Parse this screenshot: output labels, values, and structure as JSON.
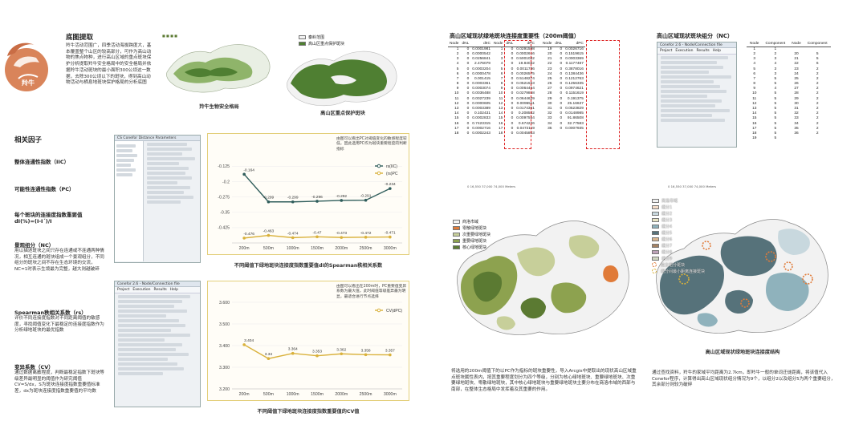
{
  "left": {
    "logo_label": "羚牛",
    "title": "底图提取",
    "desc": "羚牛活动范围广，四季活动海拔跨度大，基本覆盖整个山区的较高部分，可作为高山动物的焦点物种，进行高山区域的重点斑块保护分析提取羚牛安全格局中的安全格局并依据羚牛活动斑块的最小面积300公顷这一数据，去除300公顷以下的斑块，得到高山动物活动与栖息地斑块保护格局的分析底图",
    "map1_caption": "羚牛生物安全格局",
    "map2_caption": "高山区重点保护斑块",
    "map2_legend": [
      "秦岭范围",
      "高山区重点保护斑块"
    ],
    "factors_title": "相关因子",
    "iic_label": "整体连通性指数（IIC）",
    "pc_label": "可能性连通性指数（PC）",
    "dI_label": "每个斑块的连接度指数重要值",
    "dI_formula": "dI(%)=(I-I´)/I",
    "nc_label": "景观组分（NC）",
    "nc_desc": "用以描述斑块之间只存在连通或不连通两种情况，相互连通的斑块组成一个景观组分，不同组分的斑块之间不存在生态环境的交流，NC=1时表示生境最为完整，越大则越破碎",
    "rs_label": "Spearman秩相关系数（rs）",
    "rs_desc": "评价不同连接度指数对不同距离阈值的敏感度，寻找阈值变化下最稳定的连接度指数作为分析绿地斑块的最优指数",
    "cv_label": "变异系数（CV）",
    "cv_desc": "通过数据离散程度，判断最稳定指数下斑块等级差异最明显的阈值作为研究阈值CV=S/dx，S为斑块连接度指数重要值标准差，dx为斑块连接度指数重要值的平均数"
  },
  "windows": {
    "conefor1_title": "CS Conefor Distance Parameters",
    "conefor2_title": "Conefor 2.6 - Node/Connection file",
    "menu": [
      "Project",
      "Execution",
      "Results",
      "Help"
    ]
  },
  "chart1": {
    "note": "由图可以看出PC对阈值变化的敏感程度较低，因此选用PC作为斑块重要程度的判断指标",
    "caption": "不同阈值下绿地斑块连接度指数重要值dI的Spearman秩相关系数"
  },
  "chart2": {
    "note": "由图可以看出在200m时，PC重要值变异系数为最大值，此时阈值等级差异最为明显，最适合进行节点选择",
    "caption": "不同阈值下绿地斑块连接度指数重要值的CV值"
  },
  "chart_data": [
    {
      "type": "line",
      "categories": [
        "200m",
        "500m",
        "1000m",
        "1500m",
        "2000m",
        "2500m",
        "3000m"
      ],
      "ylim": [
        -0.5,
        -0.1
      ],
      "yticks": [
        "-0.125",
        "-0.2",
        "-0.275",
        "-0.35",
        "-0.425"
      ],
      "series": [
        {
          "name": "rs(IIC)",
          "values": [
            -0.164,
            -0.299,
            -0.299,
            -0.296,
            -0.292,
            -0.291,
            -0.234
          ],
          "labels": [
            "-0.164",
            "-0.299",
            "-0.299",
            "-0.296",
            "-0.292",
            "-0.291",
            "-0.234"
          ],
          "color": "#2f5d5b"
        },
        {
          "name": "(rs)PC",
          "values": [
            -0.476,
            -0.463,
            -0.474,
            -0.47,
            -0.473,
            -0.472,
            -0.471
          ],
          "labels": [
            "-0.476",
            "-0.463",
            "-0.474",
            "-0.47",
            "-0.473",
            "-0.472",
            "-0.471"
          ],
          "color": "#d9b13b"
        }
      ]
    },
    {
      "type": "line",
      "categories": [
        "200m",
        "500m",
        "1000m",
        "1500m",
        "2000m",
        "2500m",
        "3000m"
      ],
      "ylim": [
        3.2,
        3.6
      ],
      "yticks": [
        "3.600",
        "3.500",
        "3.400",
        "3.300",
        "3.200"
      ],
      "series": [
        {
          "name": "CV(dPC)",
          "values": [
            3.404,
            3.34,
            3.364,
            3.353,
            3.362,
            3.358,
            3.357
          ],
          "labels": [
            "3.404",
            "3.34",
            "3.364",
            "3.353",
            "3.362",
            "3.358",
            "3.357"
          ],
          "color": "#d9b13b"
        }
      ]
    }
  ],
  "table_importance": {
    "title": "高山区域现状绿地斑块连接度重要性（200m阈值）",
    "headers": [
      "Node",
      "dNL",
      "dIIC",
      "Node",
      "dNL",
      "dPC"
    ],
    "rows": [
      [
        "1",
        "0",
        "0.0001981",
        "1",
        "0",
        "0.0291598"
      ],
      [
        "2",
        "0",
        "0.0000542",
        "2",
        "0",
        "0.0002616"
      ],
      [
        "3",
        "0",
        "0.0256841",
        "3",
        "0",
        "0.5001082"
      ],
      [
        "4",
        "0",
        "2.476079",
        "4",
        "0",
        "19.84042"
      ],
      [
        "5",
        "0",
        "0.0003204",
        "5",
        "0",
        "0.0011736"
      ],
      [
        "6",
        "0",
        "0.0000478",
        "6",
        "0",
        "0.0026575"
      ],
      [
        "7",
        "0",
        "0.001415",
        "7",
        "0",
        "0.5148274"
      ],
      [
        "8",
        "0",
        "0.0003361",
        "8",
        "0",
        "0.0521553"
      ],
      [
        "9",
        "0",
        "0.0003074",
        "9",
        "0",
        "0.0064454"
      ],
      [
        "10",
        "0",
        "0.0036488",
        "10",
        "0",
        "0.0279858"
      ],
      [
        "11",
        "0",
        "0.0027239",
        "11",
        "0",
        "0.0644629"
      ],
      [
        "12",
        "0",
        "0.0000605",
        "12",
        "0",
        "0.0095511"
      ],
      [
        "13",
        "0",
        "0.0003389",
        "13",
        "0",
        "0.0174361"
      ],
      [
        "14",
        "0",
        "0.102431",
        "14",
        "0",
        "0.208582"
      ],
      [
        "15",
        "0",
        "0.0002833",
        "15",
        "0",
        "0.0097554"
      ],
      [
        "16",
        "0",
        "0.7423315",
        "16",
        "0",
        "0.674226"
      ],
      [
        "17",
        "0",
        "0.0002716",
        "17",
        "0",
        "0.0472119"
      ],
      [
        "18",
        "0",
        "0.0002243",
        "18",
        "0",
        "0.0045803"
      ]
    ],
    "extra_headers": [
      "Node",
      "dNL",
      "dPC"
    ],
    "extra_rows": [
      [
        "19",
        "0",
        "0.0002917"
      ],
      [
        "20",
        "0",
        "0.0767324"
      ],
      [
        "21",
        "0",
        "0.0001547"
      ],
      [
        "22",
        "0",
        "0.0006612"
      ],
      [
        "23",
        "0",
        "0.0011209"
      ],
      [
        "24",
        "0",
        "0.0023493"
      ],
      [
        "25",
        "0",
        "0.0003878"
      ],
      [
        "26",
        "0",
        "0.0006367"
      ],
      [
        "27",
        "0",
        "0.0004194"
      ],
      [
        "28",
        "0",
        "0.0003048"
      ],
      [
        "29",
        "0",
        "0.0020774"
      ],
      [
        "30",
        "0",
        "5.062697"
      ],
      [
        "31",
        "0",
        "0.0000984"
      ],
      [
        "32",
        "0",
        "0.0001198"
      ],
      [
        "33",
        "0",
        "90.50196"
      ],
      [
        "34",
        "0",
        "11.21739"
      ],
      [
        "35",
        "0",
        "0.0001287"
      ]
    ],
    "extra_values": [
      [
        "0.0026716",
        "0.1519615",
        "0.0003369",
        "0.1177487",
        "0.3878016",
        "0.1384436",
        "0.1212763",
        "0.1256335",
        "0.0974621",
        "0.1151619",
        "0.191375",
        "25.16637",
        "0.0523829",
        "0.0148985",
        "91.86508",
        "32.77583",
        "0.0007935"
      ]
    ],
    "extra_units": [
      "0.0026716",
      "0.1519615",
      "0.0003369",
      "0.1177487",
      "0.3878016",
      "0.1384436",
      "0.1212763",
      "0.1256335",
      "0.0974621",
      "0.1151619",
      "0.191375",
      "25.16637",
      "0.0523829",
      "0.0148985",
      "91.86508",
      "32.77583",
      "0.0007935"
    ]
  },
  "component_table": {
    "title": "高山区域现状斑块组分（NC）",
    "headers": [
      "Node",
      "Component",
      "Node",
      "Component"
    ],
    "rows": [
      [
        "1",
        "1",
        "",
        ""
      ],
      [
        "2",
        "2",
        "20",
        "5"
      ],
      [
        "3",
        "3",
        "21",
        "5"
      ],
      [
        "4",
        "4",
        "22",
        "6"
      ],
      [
        "5",
        "3",
        "23",
        "2"
      ],
      [
        "6",
        "3",
        "24",
        "2"
      ],
      [
        "7",
        "5",
        "25",
        "2"
      ],
      [
        "8",
        "5",
        "26",
        "2"
      ],
      [
        "9",
        "4",
        "27",
        "2"
      ],
      [
        "10",
        "5",
        "28",
        "2"
      ],
      [
        "11",
        "5",
        "29",
        "2"
      ],
      [
        "12",
        "5",
        "30",
        "2"
      ],
      [
        "13",
        "5",
        "31",
        "2"
      ],
      [
        "14",
        "5",
        "32",
        "2"
      ],
      [
        "15",
        "5",
        "33",
        "2"
      ],
      [
        "16",
        "5",
        "34",
        "2"
      ],
      [
        "17",
        "5",
        "35",
        "2"
      ],
      [
        "18",
        "5",
        "36",
        "2"
      ],
      [
        "19",
        "5",
        "",
        ""
      ]
    ]
  },
  "map3": {
    "legend": [
      "商洛市域",
      "零散绿地斑块",
      "次重要绿地斑块",
      "重要绿地斑块",
      "核心绿地斑块"
    ],
    "legend_colors": [
      "#f2f2f2",
      "#e07b39",
      "#c7cf9a",
      "#8da24f",
      "#5b7a32"
    ],
    "scale": "0  16,550  37,000  74,000 Meters",
    "desc": "将选用的200m阈值下的以PC作为指标的斑块重要性，导入Arcgis中提取出的现状高山区域重点斑块属性表内，按其重要程度划分为四个等级，分别为核心绿地斑块、重要绿地斑块、次重要绿地斑块、零散绿地斑块，其中核心绿地斑块与重要绿地斑块主要分布在商洛市域的西部与南部，在整体生态格局中发挥着及其重要的作用。"
  },
  "map4": {
    "legend": [
      "商洛市域",
      "组分1",
      "组分2",
      "组分3",
      "组分4",
      "组分5",
      "组分6",
      "组分7",
      "组分8",
      "组分9",
      "独立组分斑块",
      "组分间最小距离连接斑块"
    ],
    "legend_colors": [
      "#f2f2f2",
      "#f3dcc9",
      "#c8d8de",
      "#e9e5c4",
      "#8fb2bc",
      "#56727a",
      "#d8b58f",
      "#a48263",
      "#bda2b8",
      "#cfd7c1",
      "#e07b39",
      "#d9b13b"
    ],
    "scale": "0  16,550  37,000  74,000 Meters",
    "caption": "高山区域现状绿地斑块连接度结构",
    "desc": "通过查找资料，羚牛的家域平均距离为2.7km，即羚牛一般的单词迁徙距离，将该值代入Conefor程序，计算得出高山区域现状组分情况为9个，以组分2以及组分5为两个重要组分，其余部分则较为破碎"
  }
}
